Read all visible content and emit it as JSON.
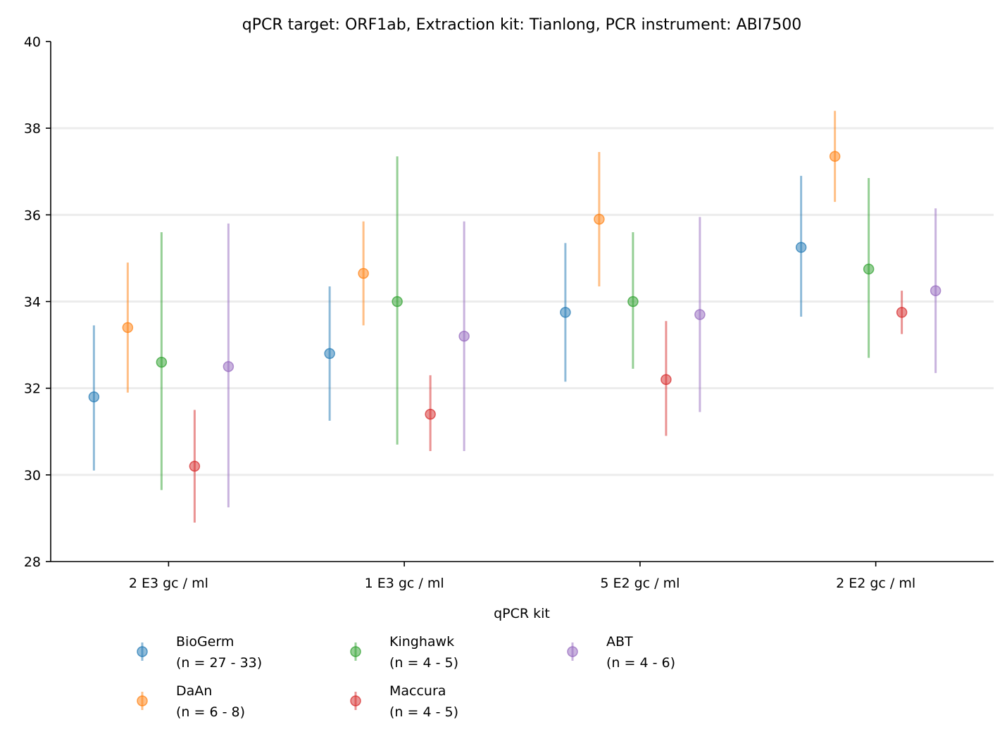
{
  "chart_data": {
    "type": "scatter",
    "title": "qPCR target: ORF1ab, Extraction kit: Tianlong, PCR instrument: ABI7500",
    "xlabel": "qPCR kit",
    "ylabel": "",
    "categories": [
      "2 E3 gc / ml",
      "1 E3 gc / ml",
      "5 E2 gc / ml",
      "2 E2 gc / ml"
    ],
    "ylim": [
      28,
      40
    ],
    "yticks": [
      28,
      30,
      32,
      34,
      36,
      38,
      40
    ],
    "grid": "horizontal",
    "legend_position": "bottom",
    "series": [
      {
        "name": "BioGerm",
        "n_label": "(n = 27 - 33)",
        "color": "#1f77b4",
        "values": [
          31.8,
          32.8,
          33.75,
          35.25
        ],
        "lower": [
          30.1,
          31.25,
          32.15,
          33.65
        ],
        "upper": [
          33.45,
          34.35,
          35.35,
          36.9
        ]
      },
      {
        "name": "DaAn",
        "n_label": "(n = 6 - 8)",
        "color": "#ff7f0e",
        "values": [
          33.4,
          34.65,
          35.9,
          37.35
        ],
        "lower": [
          31.9,
          33.45,
          34.35,
          36.3
        ],
        "upper": [
          34.9,
          35.85,
          37.45,
          38.4
        ]
      },
      {
        "name": "Kinghawk",
        "n_label": "(n = 4 - 5)",
        "color": "#2ca02c",
        "values": [
          32.6,
          34.0,
          34.0,
          34.75
        ],
        "lower": [
          29.65,
          30.7,
          32.45,
          32.7
        ],
        "upper": [
          35.6,
          37.35,
          35.6,
          36.85
        ]
      },
      {
        "name": "Maccura",
        "n_label": "(n = 4 - 5)",
        "color": "#d62728",
        "values": [
          30.2,
          31.4,
          32.2,
          33.75
        ],
        "lower": [
          28.9,
          30.55,
          30.9,
          33.25
        ],
        "upper": [
          31.5,
          32.3,
          33.55,
          34.25
        ]
      },
      {
        "name": "ABT",
        "n_label": "(n = 4 - 6)",
        "color": "#9467bd",
        "values": [
          32.5,
          33.2,
          33.7,
          34.25
        ],
        "lower": [
          29.25,
          30.55,
          31.45,
          32.35
        ],
        "upper": [
          35.8,
          35.85,
          35.95,
          36.15
        ]
      }
    ]
  }
}
